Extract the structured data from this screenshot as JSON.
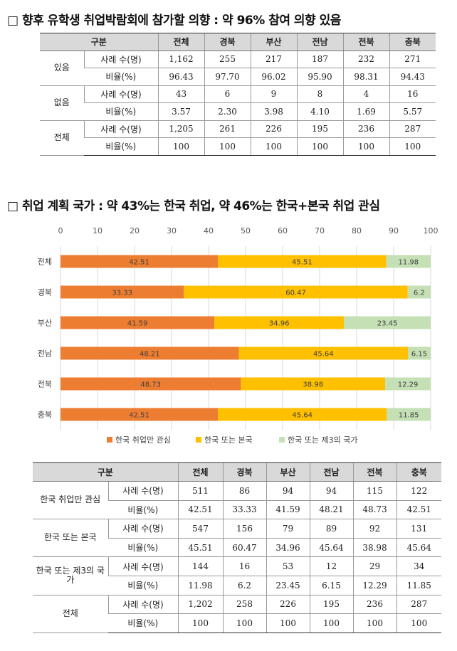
{
  "section1": {
    "title": "□ 향후 유학생 취업박람회에 참가할 의향 : 약 96% 참여 의향 있음",
    "headers": [
      "구분",
      "전체",
      "경북",
      "부산",
      "전남",
      "전북",
      "충북"
    ],
    "groups": [
      {
        "label": "있음",
        "rows": [
          {
            "sub": "사례 수(명)",
            "values": [
              "1,162",
              "255",
              "217",
              "187",
              "232",
              "271"
            ]
          },
          {
            "sub": "비율(%)",
            "values": [
              "96.43",
              "97.70",
              "96.02",
              "95.90",
              "98.31",
              "94.43"
            ]
          }
        ]
      },
      {
        "label": "없음",
        "rows": [
          {
            "sub": "사례 수(명)",
            "values": [
              "43",
              "6",
              "9",
              "8",
              "4",
              "16"
            ]
          },
          {
            "sub": "비율(%)",
            "values": [
              "3.57",
              "2.30",
              "3.98",
              "4.10",
              "1.69",
              "5.57"
            ]
          }
        ]
      },
      {
        "label": "전체",
        "rows": [
          {
            "sub": "사례 수(명)",
            "values": [
              "1,205",
              "261",
              "226",
              "195",
              "236",
              "287"
            ]
          },
          {
            "sub": "비율(%)",
            "values": [
              "100",
              "100",
              "100",
              "100",
              "100",
              "100"
            ]
          }
        ]
      }
    ]
  },
  "section2": {
    "title": "□ 취업 계획 국가 : 약 43%는 한국 취업, 약 46%는 한국+본국 취업 관심"
  },
  "chart_data": {
    "type": "bar",
    "orientation": "horizontal",
    "stacked": true,
    "categories": [
      "전체",
      "경북",
      "부산",
      "전남",
      "전북",
      "충북"
    ],
    "series": [
      {
        "name": "한국 취업만 관심",
        "color": "#ED7D31",
        "values": [
          42.51,
          33.33,
          41.59,
          48.21,
          48.73,
          42.51
        ]
      },
      {
        "name": "한국 또는 본국",
        "color": "#FFC000",
        "values": [
          45.51,
          60.47,
          34.96,
          45.64,
          38.98,
          45.64
        ]
      },
      {
        "name": "한국 또는 제3의 국가",
        "color": "#C5E0B4",
        "values": [
          11.98,
          6.2,
          23.45,
          6.15,
          12.29,
          11.85
        ]
      }
    ],
    "xlim": [
      0,
      100
    ],
    "xticks": [
      "0",
      "10",
      "20",
      "30",
      "40",
      "50",
      "60",
      "70",
      "80",
      "90",
      "100"
    ],
    "axis_position": "top",
    "legend_position": "bottom",
    "grid": true
  },
  "section3": {
    "headers": [
      "구분",
      "전체",
      "경북",
      "부산",
      "전남",
      "전북",
      "충북"
    ],
    "groups": [
      {
        "label": "한국 취업만 관심",
        "rows": [
          {
            "sub": "사례 수(명)",
            "values": [
              "511",
              "86",
              "94",
              "94",
              "115",
              "122"
            ]
          },
          {
            "sub": "비율(%)",
            "values": [
              "42.51",
              "33.33",
              "41.59",
              "48.21",
              "48.73",
              "42.51"
            ]
          }
        ]
      },
      {
        "label": "한국 또는 본국",
        "rows": [
          {
            "sub": "사례 수(명)",
            "values": [
              "547",
              "156",
              "79",
              "89",
              "92",
              "131"
            ]
          },
          {
            "sub": "비율(%)",
            "values": [
              "45.51",
              "60.47",
              "34.96",
              "45.64",
              "38.98",
              "45.64"
            ]
          }
        ]
      },
      {
        "label": "한국 또는 제3의 국가",
        "rows": [
          {
            "sub": "사례 수(명)",
            "values": [
              "144",
              "16",
              "53",
              "12",
              "29",
              "34"
            ]
          },
          {
            "sub": "비율(%)",
            "values": [
              "11.98",
              "6.2",
              "23.45",
              "6.15",
              "12.29",
              "11.85"
            ]
          }
        ]
      },
      {
        "label": "전체",
        "rows": [
          {
            "sub": "사례 수(명)",
            "values": [
              "1,202",
              "258",
              "226",
              "195",
              "236",
              "287"
            ]
          },
          {
            "sub": "비율(%)",
            "values": [
              "100",
              "100",
              "100",
              "100",
              "100",
              "100"
            ]
          }
        ]
      }
    ]
  }
}
